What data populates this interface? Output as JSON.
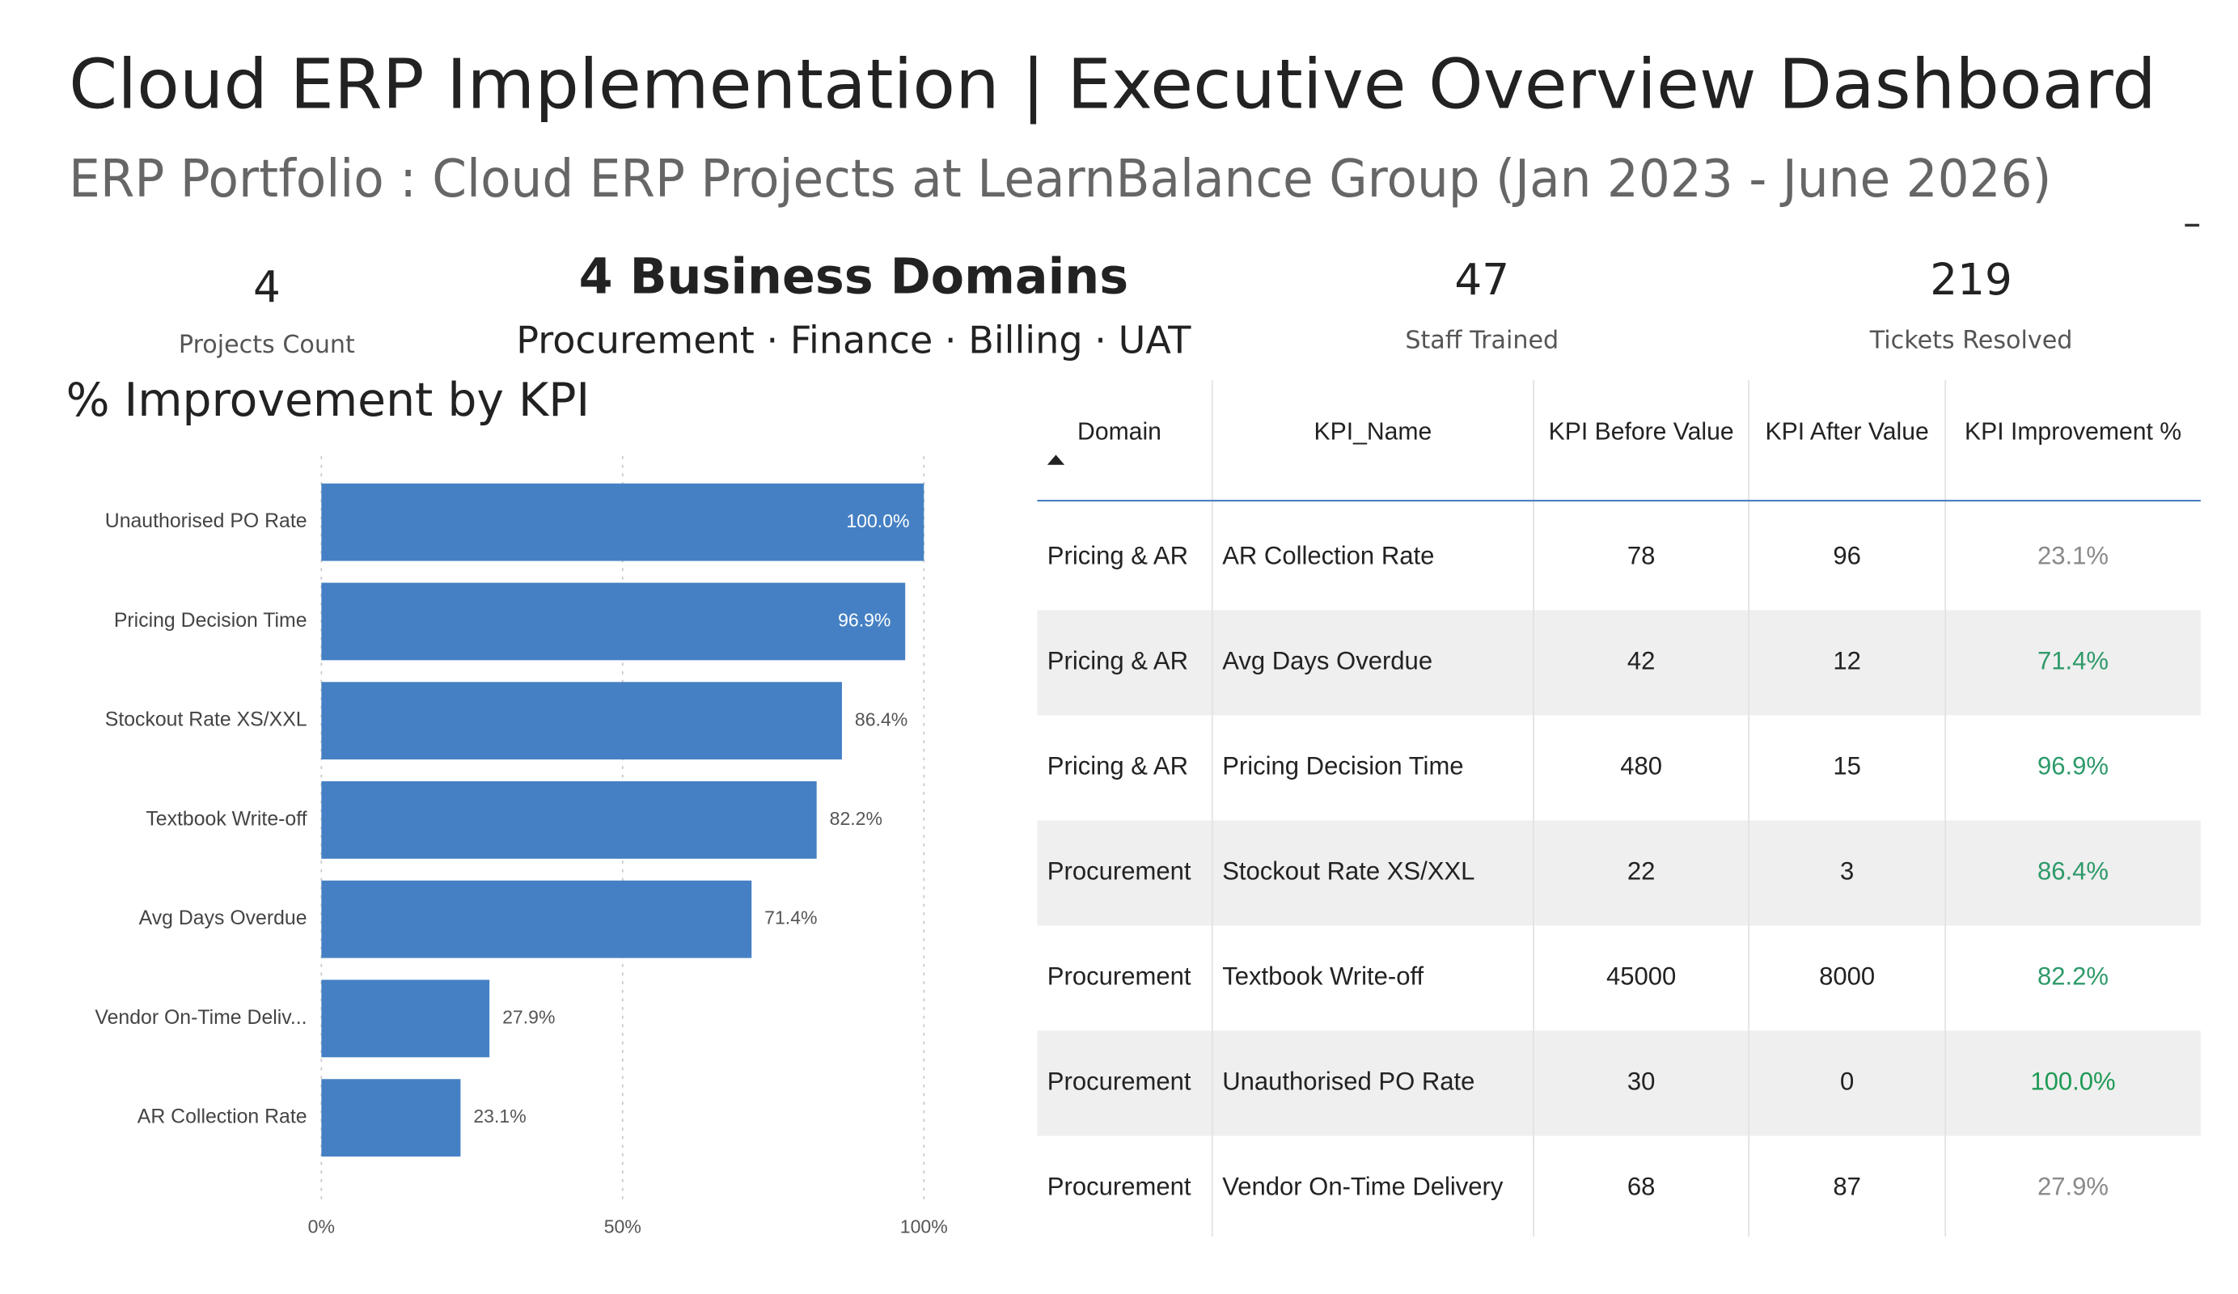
{
  "header": {
    "title": "Cloud ERP Implementation | Executive Overview Dashboard",
    "subtitle": "ERP Portfolio : Cloud ERP Projects at LearnBalance Group (Jan 2023 - June 2026)"
  },
  "cards": [
    {
      "value": "4",
      "label": "Projects Count"
    },
    {
      "value": "4 Business Domains",
      "label": "Procurement · Finance · Billing · UAT"
    },
    {
      "value": "47",
      "label": "Staff Trained"
    },
    {
      "value": "219",
      "label": "Tickets Resolved"
    }
  ],
  "chart_data": {
    "type": "hbar",
    "title": "% Improvement by KPI",
    "categories": [
      "Unauthorised PO Rate",
      "Pricing Decision Time",
      "Stockout Rate XS/XXL",
      "Textbook Write-off",
      "Avg Days Overdue",
      "Vendor On-Time Deliv...",
      "AR Collection Rate"
    ],
    "values": [
      100.0,
      96.9,
      86.4,
      82.2,
      71.4,
      27.9,
      23.1
    ],
    "value_labels": [
      "100.0%",
      "96.9%",
      "86.4%",
      "82.2%",
      "71.4%",
      "27.9%",
      "23.1%"
    ],
    "color": "#4580c4",
    "xlim": [
      0,
      100
    ],
    "xticks": [
      {
        "value": 0,
        "label": "0%"
      },
      {
        "value": 50,
        "label": "50%"
      },
      {
        "value": 100,
        "label": "100%"
      }
    ],
    "grid": true
  },
  "table": {
    "columns": [
      "Domain",
      "KPI_Name",
      "KPI Before Value",
      "KPI After Value",
      "KPI Improvement %"
    ],
    "rows": [
      [
        "Pricing & AR",
        "AR Collection Rate",
        78,
        96,
        "23.1%"
      ],
      [
        "Pricing & AR",
        "Avg Days Overdue",
        42,
        12,
        "71.4%"
      ],
      [
        "Pricing & AR",
        "Pricing Decision Time",
        480,
        15,
        "96.9%"
      ],
      [
        "Procurement",
        "Stockout Rate XS/XXL",
        22,
        3,
        "86.4%"
      ],
      [
        "Procurement",
        "Textbook Write-off",
        45000,
        8000,
        "82.2%"
      ],
      [
        "Procurement",
        "Unauthorised PO Rate",
        30,
        0,
        "100.0%"
      ],
      [
        "Procurement",
        "Vendor On-Time Delivery",
        68,
        87,
        "27.9%"
      ]
    ],
    "improvement_colors": [
      "#8a8a8a",
      "#2e9a6a",
      "#2e9a6a",
      "#2e9a6a",
      "#2e9a6a",
      "#1f9a55",
      "#8a8a8a"
    ]
  }
}
